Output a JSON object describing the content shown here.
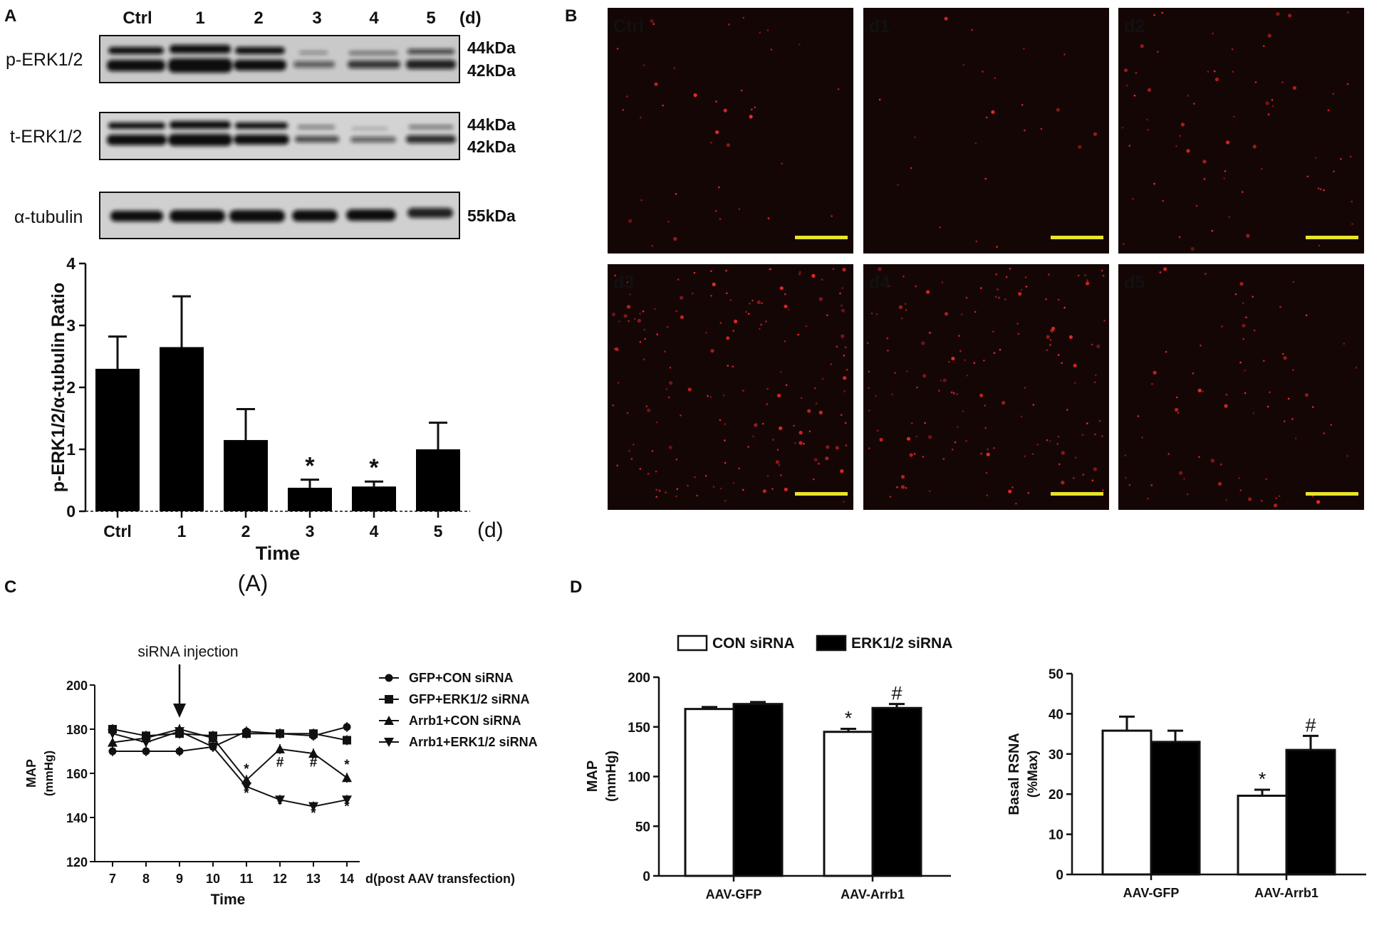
{
  "panel_labels": [
    "A",
    "B",
    "C",
    "D"
  ],
  "panelA": {
    "lanes": [
      "Ctrl",
      "1",
      "2",
      "3",
      "4",
      "5"
    ],
    "unit": "(d)",
    "blots": [
      {
        "label": "p-ERK1/2",
        "markers": [
          "44kDa",
          "42kDa"
        ]
      },
      {
        "label": "t-ERK1/2",
        "markers": [
          "44kDa",
          "42kDa"
        ]
      },
      {
        "label": "α-tubulin",
        "markers": [
          "55kDa"
        ]
      }
    ],
    "caption": "(A)"
  },
  "panelB": {
    "images": [
      "Ctrl",
      "d1",
      "d2",
      "d3",
      "d4",
      "d5"
    ],
    "colors": {
      "background": "#150606",
      "signal": "#ff2a2a",
      "scale_bar": "#e8e42a"
    }
  },
  "chart_data": [
    {
      "type": "bar",
      "panel": "A",
      "categories": [
        "Ctrl",
        "1",
        "2",
        "3",
        "4",
        "5"
      ],
      "values": [
        2.3,
        2.65,
        1.15,
        0.38,
        0.4,
        1.0
      ],
      "errors": [
        0.52,
        0.82,
        0.5,
        0.13,
        0.08,
        0.43
      ],
      "annotations": [
        "",
        "",
        "",
        "*",
        "*",
        ""
      ],
      "xlabel": "Time",
      "xunit": "(d)",
      "ylabel": "p-ERK1/2/α-tubulin Ratio",
      "ylim": [
        0,
        4
      ],
      "yticks": [
        "0",
        "1",
        "2",
        "3",
        "4"
      ],
      "bar_color": "#000000"
    },
    {
      "type": "line",
      "panel": "C",
      "x": [
        7,
        8,
        9,
        10,
        11,
        12,
        13,
        14
      ],
      "xticks": [
        "7",
        "8",
        "9",
        "10",
        "11",
        "12",
        "13",
        "14"
      ],
      "series": [
        {
          "name": "GFP+CON siRNA",
          "marker": "circle",
          "values": [
            170,
            170,
            170,
            172,
            179,
            178,
            177,
            181
          ]
        },
        {
          "name": "GFP+ERK1/2 siRNA",
          "marker": "square",
          "values": [
            180,
            177,
            178,
            177,
            178,
            178,
            178,
            175
          ]
        },
        {
          "name": "Arrb1+CON siRNA",
          "marker": "triangle-up",
          "values": [
            174,
            176,
            180,
            176,
            157,
            171,
            169,
            158
          ]
        },
        {
          "name": "Arrb1+ERK1/2 siRNA",
          "marker": "triangle-down",
          "values": [
            178,
            174,
            179,
            172,
            154,
            148,
            145,
            148
          ]
        }
      ],
      "annotations": [
        {
          "x": 11,
          "y": 160,
          "text": "*"
        },
        {
          "x": 11,
          "y": 149,
          "text": "*"
        },
        {
          "x": 12,
          "y": 163,
          "text": "#"
        },
        {
          "x": 12,
          "y": 144,
          "text": "*"
        },
        {
          "x": 13,
          "y": 163,
          "text": "#"
        },
        {
          "x": 13,
          "y": 140,
          "text": "*"
        },
        {
          "x": 14,
          "y": 162,
          "text": "*"
        },
        {
          "x": 14,
          "y": 143,
          "text": "*"
        }
      ],
      "arrow_label": "siRNA injection",
      "arrow_x": 9,
      "ylim": [
        120,
        200
      ],
      "yticks": [
        "120",
        "140",
        "160",
        "180",
        "200"
      ],
      "ylabel": [
        "MAP",
        "(mmHg)"
      ],
      "xlabel": "Time",
      "xunit": "d(post AAV transfection)",
      "color": "#111111"
    },
    {
      "type": "bar",
      "panel": "D",
      "categories": [
        "AAV-GFP",
        "AAV-Arrb1"
      ],
      "series": [
        {
          "name": "CON siRNA",
          "color": "#ffffff",
          "values": [
            168,
            145
          ],
          "errors": [
            2,
            3
          ]
        },
        {
          "name": "ERK1/2 siRNA",
          "color": "#000000",
          "values": [
            173,
            169
          ],
          "errors": [
            2,
            4
          ]
        }
      ],
      "annotations": [
        {
          "category": "AAV-Arrb1",
          "series": "CON siRNA",
          "text": "*"
        },
        {
          "category": "AAV-Arrb1",
          "series": "ERK1/2 siRNA",
          "text": "#"
        }
      ],
      "ylabel": [
        "MAP",
        "(mmHg)"
      ],
      "ylim": [
        0,
        200
      ],
      "yticks": [
        "0",
        "50",
        "100",
        "150",
        "200"
      ]
    },
    {
      "type": "bar",
      "panel": "D",
      "categories": [
        "AAV-GFP",
        "AAV-Arrb1"
      ],
      "series": [
        {
          "name": "CON siRNA",
          "color": "#ffffff",
          "values": [
            35.8,
            19.6
          ],
          "errors": [
            3.5,
            1.5
          ]
        },
        {
          "name": "ERK1/2 siRNA",
          "color": "#000000",
          "values": [
            33,
            31
          ],
          "errors": [
            2.8,
            3.5
          ]
        }
      ],
      "annotations": [
        {
          "category": "AAV-Arrb1",
          "series": "CON siRNA",
          "text": "*"
        },
        {
          "category": "AAV-Arrb1",
          "series": "ERK1/2 siRNA",
          "text": "#"
        }
      ],
      "ylabel": [
        "Basal RSNA",
        "(%Max)"
      ],
      "ylim": [
        0,
        50
      ],
      "yticks": [
        "0",
        "10",
        "20",
        "30",
        "40",
        "50"
      ]
    }
  ],
  "legendD": [
    "CON siRNA",
    "ERK1/2 siRNA"
  ]
}
